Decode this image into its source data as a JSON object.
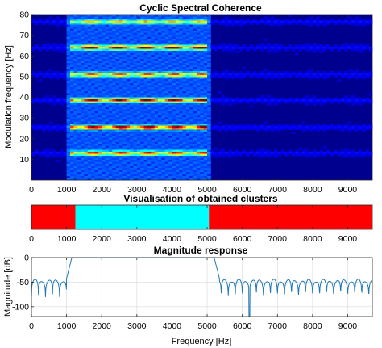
{
  "chart_data": [
    {
      "type": "heatmap",
      "title": "Cyclic Spectral Coherence",
      "xlabel": "",
      "ylabel": "Modulation frequency [Hz]",
      "xlim": [
        0,
        9700
      ],
      "ylim": [
        0,
        80
      ],
      "xticks": [
        0,
        1000,
        2000,
        3000,
        4000,
        5000,
        6000,
        7000,
        8000,
        9000
      ],
      "yticks": [
        10,
        20,
        30,
        40,
        50,
        60,
        70,
        80
      ],
      "colormap": "jet",
      "ridges": [
        {
          "alpha": 13,
          "x": [
            1100,
            5000
          ],
          "intensity": 0.7
        },
        {
          "alpha": 25.5,
          "x": [
            1100,
            5000
          ],
          "intensity": 0.9
        },
        {
          "alpha": 38.5,
          "x": [
            1100,
            5000
          ],
          "intensity": 0.8
        },
        {
          "alpha": 51,
          "x": [
            1100,
            5000
          ],
          "intensity": 0.66
        },
        {
          "alpha": 64,
          "x": [
            1100,
            5000
          ],
          "intensity": 0.85
        },
        {
          "alpha": 76.5,
          "x": [
            1100,
            5000
          ],
          "intensity": 0.5
        }
      ]
    },
    {
      "type": "bar",
      "title": "Visualisation of obtained clusters",
      "xlim": [
        0,
        9700
      ],
      "xticks": [
        0,
        1000,
        2000,
        3000,
        4000,
        5000,
        6000,
        7000,
        8000,
        9000
      ],
      "segments": [
        {
          "x0": 0,
          "x1": 1250,
          "color": "#ff0000"
        },
        {
          "x0": 1250,
          "x1": 5050,
          "color": "#00ffff"
        },
        {
          "x0": 5050,
          "x1": 9700,
          "color": "#ff0000"
        }
      ]
    },
    {
      "type": "line",
      "title": "Magnitude response",
      "xlabel": "Frequency [Hz]",
      "ylabel": "Magnitude [dB]",
      "xlim": [
        0,
        9700
      ],
      "ylim": [
        -120,
        0
      ],
      "xticks": [
        0,
        1000,
        2000,
        3000,
        4000,
        5000,
        6000,
        7000,
        8000,
        9000
      ],
      "yticks": [
        0,
        -50,
        -100
      ],
      "grid": true,
      "color": "#1f77b4",
      "passband": [
        1150,
        5200
      ],
      "stopband_level": -47,
      "lobe_spacing": 200
    }
  ]
}
